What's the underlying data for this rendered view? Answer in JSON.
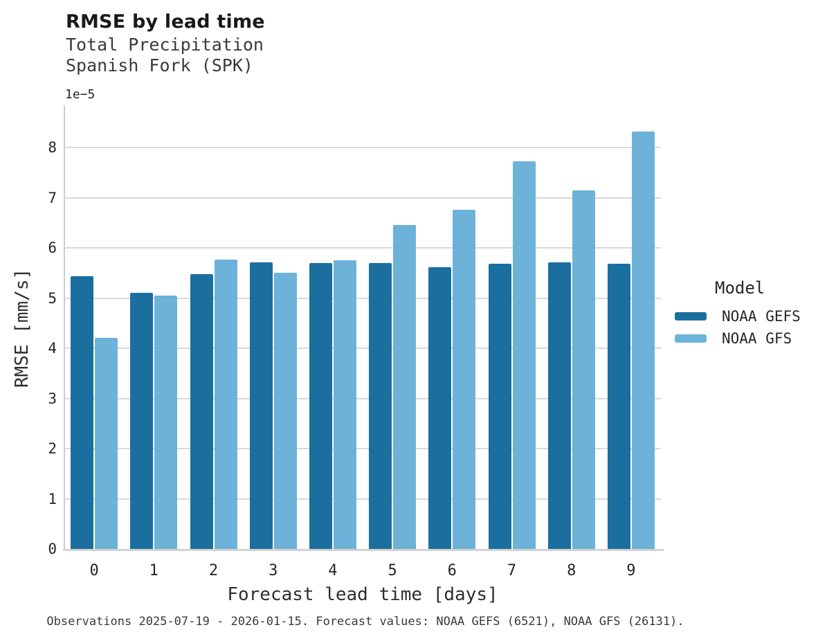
{
  "chart_data": {
    "type": "bar",
    "title": "RMSE by lead time",
    "subtitle": [
      "Total Precipitation",
      "Spanish Fork (SPK)"
    ],
    "xlabel": "Forecast lead time [days]",
    "ylabel": "RMSE [mm/s]",
    "y_offset_label": "1e−5",
    "categories": [
      "0",
      "1",
      "2",
      "3",
      "4",
      "5",
      "6",
      "7",
      "8",
      "9"
    ],
    "series": [
      {
        "name": "NOAA GEFS",
        "color": "#1a6f9e",
        "values": [
          5.44,
          5.1,
          5.48,
          5.71,
          5.7,
          5.7,
          5.62,
          5.68,
          5.71,
          5.68
        ]
      },
      {
        "name": "NOAA GFS",
        "color": "#6cb2d9",
        "values": [
          4.21,
          5.05,
          5.77,
          5.51,
          5.75,
          6.45,
          6.76,
          7.72,
          7.15,
          8.32
        ]
      }
    ],
    "ylim": [
      0,
      8.8
    ],
    "yticks": [
      0,
      1,
      2,
      3,
      4,
      5,
      6,
      7,
      8
    ],
    "grid": true,
    "legend": {
      "title": "Model",
      "position": "right"
    },
    "caption": "Observations 2025-07-19 - 2026-01-15. Forecast values: NOAA GEFS (6521), NOAA GFS (26131)."
  },
  "colors": {
    "gefs": "#1a6f9e",
    "gfs": "#6cb2d9",
    "gridline": "#d9d9d9",
    "spine": "#cccccc"
  }
}
